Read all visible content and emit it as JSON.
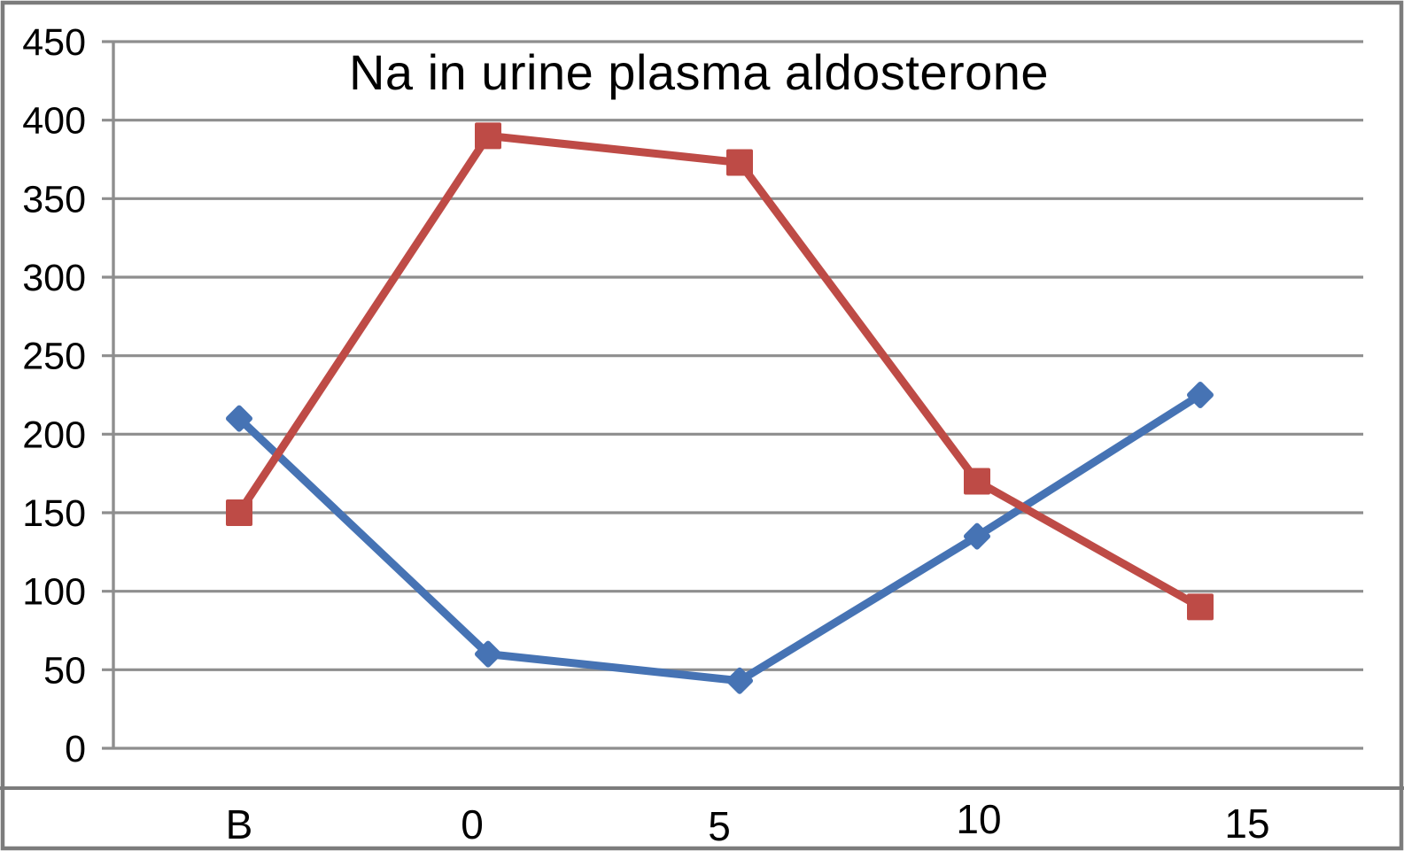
{
  "figure": {
    "background": "#ffffff",
    "border_color": "#7c7c7c"
  },
  "chart_data": {
    "type": "line",
    "title": "Na in urine plasma aldosterone",
    "xlabel": "",
    "ylabel": "",
    "categories": [
      "B",
      "0",
      "5",
      "10",
      "15"
    ],
    "series": [
      {
        "marker": "diamond",
        "color": "#4673B4",
        "values": [
          210,
          60,
          43,
          135,
          225
        ]
      },
      {
        "marker": "square",
        "color": "#BE4B46",
        "values": [
          150,
          390,
          373,
          170,
          90
        ]
      }
    ],
    "ylim": [
      0,
      450
    ],
    "yticks": [
      450,
      400,
      350,
      300,
      250,
      200,
      150,
      100,
      50,
      0
    ],
    "grid": true,
    "legend": false,
    "axis_color": "#8e8e8e",
    "text_color": "#000000"
  }
}
